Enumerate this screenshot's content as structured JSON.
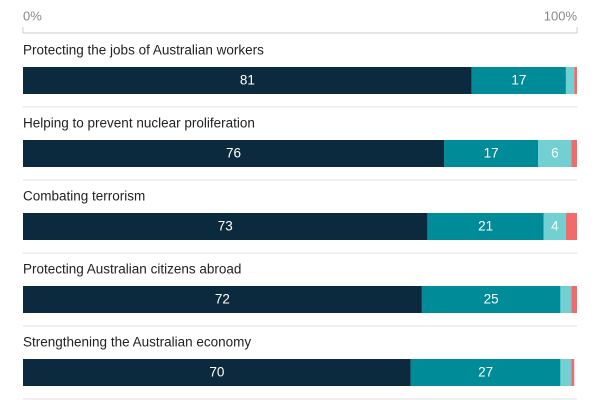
{
  "chart_data": {
    "type": "bar",
    "orientation": "horizontal",
    "stacked": true,
    "categories": [
      "Protecting the jobs of Australian workers",
      "Helping to prevent nuclear proliferation",
      "Combating terrorism",
      "Protecting Australian citizens abroad",
      "Strengthening the Australian economy"
    ],
    "series": [
      {
        "color": "#0c2a3e",
        "values": [
          81,
          76,
          73,
          72,
          70
        ]
      },
      {
        "color": "#008b98",
        "values": [
          17,
          17,
          21,
          25,
          27
        ]
      },
      {
        "color": "#72cfd2",
        "values": [
          1.5,
          6,
          4,
          2,
          2
        ]
      },
      {
        "color": "#f26b6b",
        "values": [
          0.5,
          1,
          2,
          1,
          0.5
        ]
      }
    ],
    "xlim": [
      0,
      100
    ],
    "xticks": [
      {
        "value": 0,
        "label": "0%"
      },
      {
        "value": 100,
        "label": "100%"
      }
    ]
  }
}
